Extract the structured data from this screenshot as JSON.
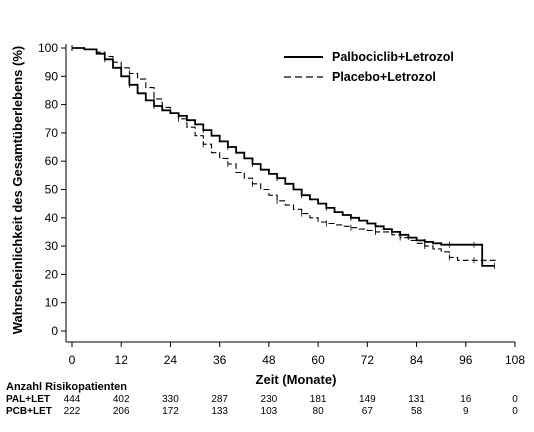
{
  "chart_data": {
    "type": "line",
    "ylabel": "Wahrscheinlichkeit des Gesamtüberlebens (%)",
    "xlabel": "Zeit (Monate)",
    "xlim": [
      0,
      108
    ],
    "ylim": [
      0,
      100
    ],
    "xticks": [
      0,
      12,
      24,
      36,
      48,
      60,
      72,
      84,
      96,
      108
    ],
    "yticks": [
      0,
      10,
      20,
      30,
      40,
      50,
      60,
      70,
      80,
      90,
      100
    ],
    "legend_position": "top-right",
    "series": [
      {
        "name": "Palbociclib+Letrozol",
        "style": "solid",
        "color": "#000000",
        "points": [
          [
            0,
            100
          ],
          [
            3,
            99.5
          ],
          [
            6,
            98
          ],
          [
            8,
            96
          ],
          [
            10,
            93
          ],
          [
            12,
            90
          ],
          [
            14,
            87
          ],
          [
            16,
            84
          ],
          [
            18,
            81.5
          ],
          [
            20,
            79.5
          ],
          [
            22,
            78
          ],
          [
            24,
            77
          ],
          [
            26,
            76
          ],
          [
            28,
            74.5
          ],
          [
            30,
            73
          ],
          [
            32,
            71
          ],
          [
            34,
            69
          ],
          [
            36,
            67
          ],
          [
            38,
            65
          ],
          [
            40,
            63
          ],
          [
            42,
            61
          ],
          [
            44,
            59
          ],
          [
            46,
            57
          ],
          [
            48,
            55.5
          ],
          [
            50,
            54
          ],
          [
            52,
            52
          ],
          [
            54,
            50
          ],
          [
            56,
            48
          ],
          [
            58,
            46.5
          ],
          [
            60,
            45
          ],
          [
            62,
            43.5
          ],
          [
            64,
            42
          ],
          [
            66,
            41
          ],
          [
            68,
            40
          ],
          [
            70,
            39
          ],
          [
            72,
            38
          ],
          [
            74,
            37
          ],
          [
            76,
            36
          ],
          [
            78,
            35
          ],
          [
            80,
            34
          ],
          [
            82,
            33
          ],
          [
            84,
            32
          ],
          [
            86,
            31.5
          ],
          [
            88,
            31
          ],
          [
            90,
            30.5
          ],
          [
            92,
            30.5
          ],
          [
            94,
            30.5
          ],
          [
            96,
            30.5
          ],
          [
            98,
            30.5
          ],
          [
            100,
            30.5
          ],
          [
            100,
            23
          ],
          [
            103,
            23
          ]
        ]
      },
      {
        "name": "Placebo+Letrozol",
        "style": "dashed",
        "color": "#000000",
        "points": [
          [
            0,
            100
          ],
          [
            3,
            99.5
          ],
          [
            6,
            98.5
          ],
          [
            8,
            97
          ],
          [
            10,
            95
          ],
          [
            12,
            93
          ],
          [
            14,
            91
          ],
          [
            16,
            89
          ],
          [
            18,
            86
          ],
          [
            20,
            82
          ],
          [
            22,
            79
          ],
          [
            24,
            77
          ],
          [
            26,
            75
          ],
          [
            28,
            72
          ],
          [
            30,
            69
          ],
          [
            32,
            66
          ],
          [
            34,
            63
          ],
          [
            36,
            61
          ],
          [
            38,
            59
          ],
          [
            40,
            56
          ],
          [
            42,
            54
          ],
          [
            44,
            52
          ],
          [
            46,
            50
          ],
          [
            48,
            48
          ],
          [
            50,
            46
          ],
          [
            52,
            44.5
          ],
          [
            54,
            43
          ],
          [
            56,
            41.5
          ],
          [
            58,
            40
          ],
          [
            60,
            38.5
          ],
          [
            62,
            38
          ],
          [
            64,
            37.5
          ],
          [
            66,
            37
          ],
          [
            68,
            36.5
          ],
          [
            70,
            36
          ],
          [
            72,
            35.5
          ],
          [
            74,
            35
          ],
          [
            76,
            35
          ],
          [
            78,
            34
          ],
          [
            80,
            33
          ],
          [
            82,
            32
          ],
          [
            84,
            31
          ],
          [
            86,
            30
          ],
          [
            88,
            29
          ],
          [
            90,
            28
          ],
          [
            92,
            26
          ],
          [
            94,
            25
          ],
          [
            96,
            25
          ],
          [
            98,
            25
          ],
          [
            100,
            25
          ],
          [
            104,
            25
          ]
        ]
      }
    ],
    "risk_table": {
      "title": "Anzahl Risikopatienten",
      "times": [
        0,
        12,
        24,
        36,
        48,
        60,
        72,
        84,
        96,
        108
      ],
      "rows": [
        {
          "label": "PAL+LET",
          "values": [
            "444",
            "402",
            "330",
            "287",
            "230",
            "181",
            "149",
            "131",
            "16",
            "0"
          ]
        },
        {
          "label": "PCB+LET",
          "values": [
            "222",
            "206",
            "172",
            "133",
            "103",
            "80",
            "67",
            "58",
            "9",
            "0"
          ]
        }
      ]
    }
  }
}
